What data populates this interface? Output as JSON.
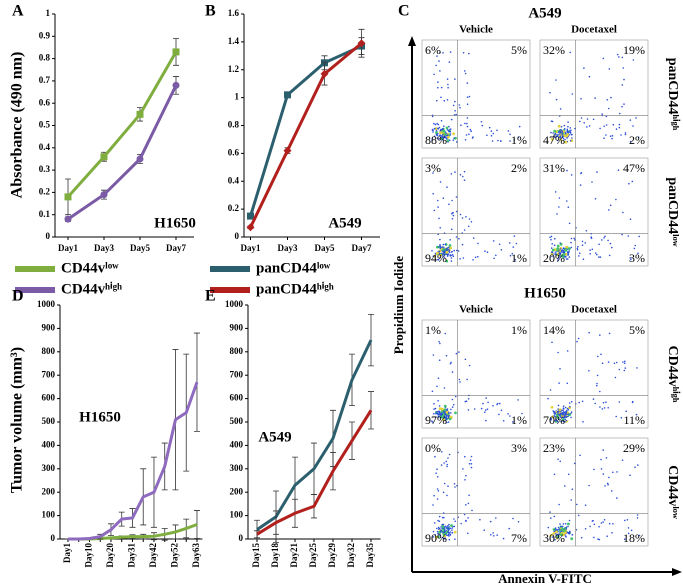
{
  "chart_data": [
    {
      "type": "line",
      "panel": "A",
      "ylabel": "Absorbance (490 nm)",
      "annotation": "H1650",
      "categories": [
        "Day1",
        "Day3",
        "Day5",
        "Day7"
      ],
      "ylim": [
        0,
        1
      ],
      "yticks": [
        0,
        0.1,
        0.2,
        0.3,
        0.4,
        0.5,
        0.6,
        0.7,
        0.8,
        0.9,
        1
      ],
      "legend": "below",
      "series": [
        {
          "name": "CD44vˡᵒʷ",
          "color": "#7fae3f",
          "marker": "square",
          "values": [
            0.18,
            0.36,
            0.55,
            0.83
          ],
          "errors": [
            0.08,
            0.02,
            0.03,
            0.06
          ]
        },
        {
          "name": "CD44vʰⁱᵍʰ",
          "color": "#7b5aa6",
          "marker": "circle",
          "values": [
            0.08,
            0.19,
            0.35,
            0.68
          ],
          "errors": [
            0.01,
            0.02,
            0.02,
            0.04
          ]
        }
      ]
    },
    {
      "type": "line",
      "panel": "B",
      "annotation": "A549",
      "categories": [
        "Day1",
        "Day3",
        "Day5",
        "Day7"
      ],
      "ylim": [
        0,
        1.6
      ],
      "yticks": [
        0,
        0.2,
        0.4,
        0.6,
        0.8,
        1,
        1.2,
        1.4,
        1.6
      ],
      "legend": "below",
      "series": [
        {
          "name": "panCD44ˡᵒʷ",
          "color": "#2c5f6e",
          "marker": "square",
          "values": [
            0.15,
            1.02,
            1.25,
            1.37
          ],
          "errors": [
            0.02,
            0.02,
            0.05,
            0.06
          ]
        },
        {
          "name": "panCD44ʰⁱᵍʰ",
          "color": "#b2201d",
          "marker": "diamond",
          "values": [
            0.07,
            0.62,
            1.17,
            1.39
          ],
          "errors": [
            0.01,
            0.02,
            0.08,
            0.1
          ]
        }
      ]
    },
    {
      "type": "line",
      "panel": "D",
      "ylabel": "Tumor volume (mm³)",
      "annotation": "H1650",
      "categories": [
        "Day1",
        null,
        "Day10",
        null,
        "Day20",
        null,
        "Day31",
        null,
        "Day42",
        null,
        "Day52",
        null,
        "Day63"
      ],
      "ylim": [
        0,
        1000
      ],
      "yticks": [
        0,
        100,
        200,
        300,
        400,
        500,
        600,
        700,
        800,
        900,
        1000
      ],
      "series": [
        {
          "color": "#7fae3f",
          "values": [
            0,
            0,
            0,
            2,
            5,
            8,
            10,
            10,
            12,
            20,
            30,
            45,
            62
          ],
          "errors": [
            0,
            0,
            0,
            2,
            4,
            5,
            8,
            10,
            15,
            25,
            30,
            40,
            60
          ]
        },
        {
          "color": "#8e6bbf",
          "values": [
            0,
            0,
            2,
            10,
            40,
            85,
            90,
            180,
            200,
            310,
            510,
            540,
            670
          ],
          "errors": [
            0,
            0,
            3,
            10,
            25,
            30,
            40,
            120,
            150,
            100,
            300,
            250,
            210
          ]
        }
      ]
    },
    {
      "type": "line",
      "panel": "E",
      "annotation": "A549",
      "categories": [
        "Day15",
        "Day18",
        "Day21",
        "Day25",
        "Day29",
        "Day32",
        "Day35"
      ],
      "ylim": [
        0,
        1000
      ],
      "yticks": [
        0,
        100,
        200,
        300,
        400,
        500,
        600,
        700,
        800,
        900,
        1000
      ],
      "series": [
        {
          "color": "#2c5f6e",
          "values": [
            40,
            95,
            230,
            300,
            430,
            680,
            850
          ],
          "errors": [
            40,
            110,
            120,
            110,
            120,
            110,
            110
          ]
        },
        {
          "color": "#b2201d",
          "values": [
            20,
            70,
            110,
            140,
            290,
            420,
            550
          ],
          "errors": [
            15,
            50,
            60,
            50,
            80,
            80,
            80
          ]
        }
      ]
    }
  ],
  "flow_cytometry": {
    "panel": "C",
    "x_label": "Annexin V-FITC",
    "y_label": "Propidium Iodide",
    "groups": [
      {
        "title": "A549",
        "columns": [
          "Vehicle",
          "Docetaxel"
        ],
        "rows": [
          {
            "label": "panCD44ʰⁱᵍʰ",
            "plots": [
              [
                "6%",
                "5%",
                "88%",
                "1%"
              ],
              [
                "32%",
                "19%",
                "47%",
                "2%"
              ]
            ]
          },
          {
            "label": "panCD44ˡᵒʷ",
            "plots": [
              [
                "3%",
                "2%",
                "94%",
                "1%"
              ],
              [
                "31%",
                "47%",
                "20%",
                "3%"
              ]
            ]
          }
        ]
      },
      {
        "title": "H1650",
        "columns": [
          "Vehicle",
          "Docetaxel"
        ],
        "rows": [
          {
            "label": "CD44vʰⁱᵍʰ",
            "plots": [
              [
                "1%",
                "1%",
                "97%",
                "1%"
              ],
              [
                "14%",
                "5%",
                "70%",
                "11%"
              ]
            ]
          },
          {
            "label": "CD44vˡᵒʷ",
            "plots": [
              [
                "0%",
                "3%",
                "90%",
                "7%"
              ],
              [
                "23%",
                "29%",
                "30%",
                "18%"
              ]
            ]
          }
        ]
      }
    ]
  }
}
